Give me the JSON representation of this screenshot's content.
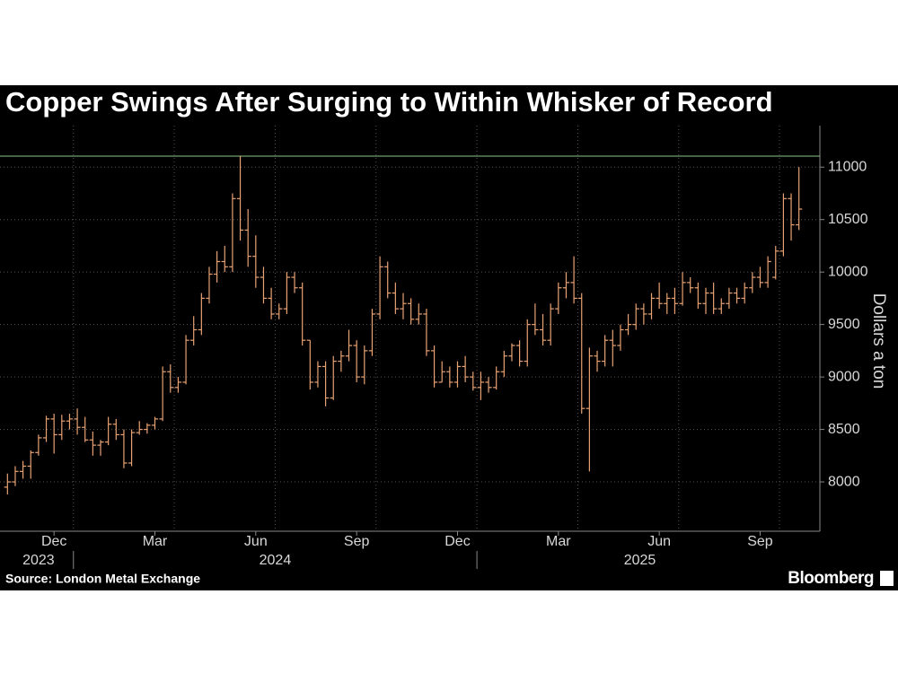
{
  "chart_data": {
    "type": "ohlc",
    "title": "Copper Swings After Surging to Within Whisker of Record",
    "y_axis_label": "Dollars a ton",
    "source": "Source: London Metal Exchange",
    "branding": "Bloomberg",
    "color": "#e8a273",
    "reference_line": {
      "value": 11105,
      "color": "#8fc48a"
    },
    "ylim": [
      7530,
      11310
    ],
    "yticks": [
      8000,
      8500,
      9000,
      9500,
      10000,
      10500,
      11000
    ],
    "grid": true,
    "categories": [
      null,
      null,
      null,
      null,
      null,
      null,
      "Dec",
      null,
      null,
      null,
      null,
      null,
      null,
      null,
      null,
      null,
      null,
      null,
      null,
      "Mar",
      null,
      null,
      null,
      null,
      null,
      null,
      null,
      null,
      null,
      null,
      null,
      null,
      "Jun",
      null,
      null,
      null,
      null,
      null,
      null,
      null,
      null,
      null,
      null,
      null,
      null,
      "Sep",
      null,
      null,
      null,
      null,
      null,
      null,
      null,
      null,
      null,
      null,
      null,
      null,
      "Dec",
      null,
      null,
      null,
      null,
      null,
      null,
      null,
      null,
      null,
      null,
      null,
      null,
      "Mar",
      null,
      null,
      null,
      null,
      null,
      null,
      null,
      null,
      null,
      null,
      null,
      null,
      "Jun",
      null,
      null,
      null,
      null,
      null,
      null,
      null,
      null,
      null,
      null,
      null,
      null,
      "Sep",
      null,
      null,
      null,
      null,
      null
    ],
    "years": [
      {
        "label": "2023",
        "start": 0
      },
      {
        "label": "2024",
        "start": 9
      },
      {
        "label": "2025",
        "start": 61
      }
    ],
    "open": [
      7950,
      8000,
      8100,
      8150,
      8280,
      8420,
      8600,
      8450,
      8580,
      8600,
      8520,
      8400,
      8350,
      8380,
      8550,
      8450,
      8180,
      8470,
      8500,
      8540,
      8600,
      9050,
      8900,
      8950,
      9350,
      9450,
      9750,
      9980,
      10100,
      10050,
      10700,
      10400,
      10150,
      9950,
      9750,
      9600,
      9650,
      9950,
      9850,
      9350,
      8950,
      9100,
      8800,
      9150,
      9200,
      9300,
      9000,
      9250,
      9600,
      10050,
      9800,
      9650,
      9700,
      9550,
      9600,
      9250,
      8950,
      9050,
      8950,
      9100,
      9000,
      8900,
      8950,
      8900,
      9050,
      9200,
      9300,
      9150,
      9500,
      9450,
      9350,
      9650,
      9850,
      9900,
      9750,
      8700,
      9200,
      9150,
      9350,
      9300,
      9450,
      9500,
      9650,
      9600,
      9750,
      9700,
      9750,
      9700,
      9900,
      9850,
      9700,
      9800,
      9650,
      9700,
      9800,
      9750,
      9850,
      9950,
      9900,
      9950,
      10200,
      10700,
      10450
    ],
    "high": [
      8080,
      8150,
      8200,
      8300,
      8450,
      8630,
      8650,
      8640,
      8650,
      8700,
      8620,
      8480,
      8400,
      8620,
      8600,
      8500,
      8500,
      8580,
      8560,
      8620,
      9100,
      9120,
      9000,
      9400,
      9580,
      9800,
      10050,
      10200,
      10250,
      10750,
      11105,
      10600,
      10350,
      10050,
      9850,
      9700,
      10000,
      10000,
      9900,
      9350,
      9150,
      9150,
      9200,
      9250,
      9450,
      9350,
      9300,
      9650,
      10150,
      10100,
      9900,
      9800,
      9750,
      9700,
      9650,
      9300,
      9150,
      9100,
      9150,
      9200,
      9050,
      9050,
      9000,
      9100,
      9250,
      9320,
      9350,
      9550,
      9700,
      9600,
      9700,
      9900,
      10000,
      10150,
      9800,
      9280,
      9250,
      9400,
      9450,
      9500,
      9600,
      9700,
      9700,
      9800,
      9900,
      9800,
      9850,
      10000,
      9950,
      9900,
      9850,
      9900,
      9750,
      9850,
      9850,
      9900,
      10000,
      10050,
      10150,
      10250,
      10750,
      10750,
      11000
    ],
    "low": [
      7880,
      7960,
      8030,
      8030,
      8250,
      8380,
      8270,
      8400,
      8500,
      8450,
      8380,
      8250,
      8250,
      8350,
      8400,
      8130,
      8150,
      8450,
      8460,
      8500,
      8580,
      8850,
      8850,
      8930,
      9300,
      9400,
      9700,
      9900,
      10000,
      10000,
      10300,
      10050,
      9850,
      9700,
      9550,
      9550,
      9600,
      9800,
      9300,
      8880,
      8900,
      8720,
      8780,
      9050,
      9150,
      8950,
      8930,
      9200,
      9550,
      9750,
      9600,
      9550,
      9500,
      9500,
      9200,
      8900,
      8950,
      8900,
      8900,
      8950,
      8870,
      8780,
      8850,
      8880,
      9000,
      9150,
      9100,
      9100,
      9400,
      9300,
      9300,
      9600,
      9750,
      9700,
      8650,
      8100,
      9050,
      9100,
      9100,
      9250,
      9400,
      9450,
      9500,
      9550,
      9650,
      9600,
      9600,
      9680,
      9800,
      9650,
      9600,
      9600,
      9600,
      9650,
      9700,
      9700,
      9800,
      9850,
      9850,
      9930,
      10150,
      10300,
      10400
    ],
    "close": [
      8000,
      8100,
      8150,
      8280,
      8420,
      8600,
      8450,
      8580,
      8600,
      8520,
      8400,
      8350,
      8380,
      8550,
      8450,
      8180,
      8470,
      8500,
      8540,
      8600,
      9050,
      8900,
      8950,
      9350,
      9450,
      9750,
      9980,
      10100,
      10050,
      10700,
      10400,
      10150,
      9950,
      9750,
      9600,
      9650,
      9950,
      9850,
      9350,
      8950,
      9100,
      8800,
      9150,
      9200,
      9300,
      9000,
      9250,
      9600,
      10050,
      9800,
      9650,
      9700,
      9550,
      9600,
      9250,
      8950,
      9050,
      8950,
      9100,
      9000,
      8900,
      8950,
      8900,
      9050,
      9200,
      9300,
      9150,
      9500,
      9450,
      9350,
      9650,
      9850,
      9900,
      9750,
      8700,
      9200,
      9150,
      9350,
      9300,
      9450,
      9500,
      9650,
      9600,
      9750,
      9700,
      9750,
      9700,
      9900,
      9850,
      9700,
      9800,
      9650,
      9700,
      9800,
      9750,
      9850,
      9950,
      9900,
      10100,
      10200,
      10700,
      10450,
      10600
    ]
  }
}
